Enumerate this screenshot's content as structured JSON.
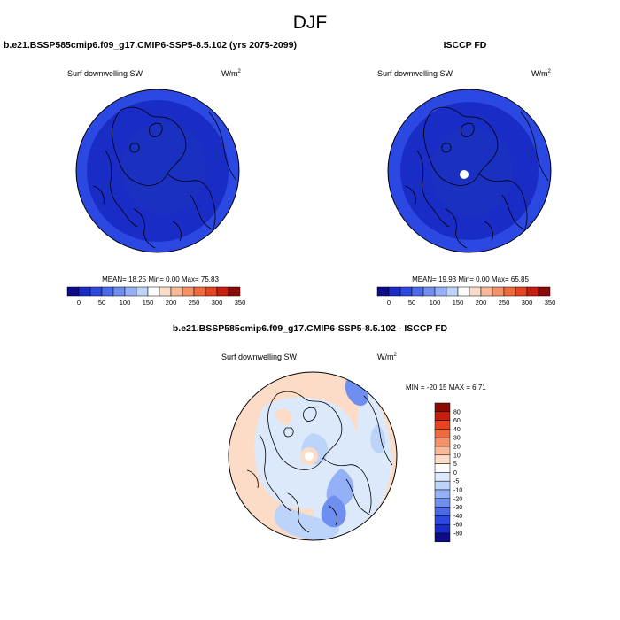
{
  "title": "DJF",
  "panels": {
    "left": {
      "title": "b.e21.BSSP585cmip6.f09_g17.CMIP6-SSP5-8.5.102 (yrs 2075-2099)",
      "variable": "Surf downwelling SW",
      "units_base": "W/m",
      "units_exp": "2",
      "stats": "MEAN=  18.25  Min=   0.00  Max=  75.83"
    },
    "right": {
      "title": "ISCCP FD",
      "variable": "Surf downwelling SW",
      "units_base": "W/m",
      "units_exp": "2",
      "stats": "MEAN=  19.93  Min=   0.00  Max=  65.85"
    },
    "diff": {
      "title": "b.e21.BSSP585cmip6.f09_g17.CMIP6-SSP5-8.5.102 - ISCCP FD",
      "variable": "Surf downwelling SW",
      "units_base": "W/m",
      "units_exp": "2",
      "stats": "MIN = -20.15 MAX =   6.71"
    }
  },
  "chart_data": [
    {
      "type": "heatmap",
      "projection": "north-polar-stereographic",
      "panel": "left",
      "colorbar": {
        "orientation": "horizontal",
        "ticks": [
          "0",
          "50",
          "100",
          "150",
          "200",
          "250",
          "300",
          "350"
        ],
        "colors": [
          "#0d0a8c",
          "#1a2cc6",
          "#2c48e2",
          "#4b6ae8",
          "#6f8ff0",
          "#94b0f6",
          "#bcd4fa",
          "#fcfcfc",
          "#fcdcc6",
          "#fbb896",
          "#f69066",
          "#ef6a3c",
          "#e6431e",
          "#c81e10",
          "#8c0a06"
        ]
      },
      "field_summary": {
        "mean": 18.25,
        "min": 0.0,
        "max": 75.83
      }
    },
    {
      "type": "heatmap",
      "projection": "north-polar-stereographic",
      "panel": "right",
      "colorbar": {
        "orientation": "horizontal",
        "ticks": [
          "0",
          "50",
          "100",
          "150",
          "200",
          "250",
          "300",
          "350"
        ],
        "colors": [
          "#0d0a8c",
          "#1a2cc6",
          "#2c48e2",
          "#4b6ae8",
          "#6f8ff0",
          "#94b0f6",
          "#bcd4fa",
          "#fcfcfc",
          "#fcdcc6",
          "#fbb896",
          "#f69066",
          "#ef6a3c",
          "#e6431e",
          "#c81e10",
          "#8c0a06"
        ]
      },
      "field_summary": {
        "mean": 19.93,
        "min": 0.0,
        "max": 65.85
      }
    },
    {
      "type": "heatmap",
      "projection": "north-polar-stereographic",
      "panel": "diff",
      "colorbar": {
        "orientation": "vertical",
        "ticks": [
          "80",
          "60",
          "40",
          "30",
          "20",
          "10",
          "5",
          "0",
          "-5",
          "-10",
          "-20",
          "-30",
          "-40",
          "-60",
          "-80"
        ],
        "colors": [
          "#8c0a06",
          "#c81e10",
          "#e6431e",
          "#ef6a3c",
          "#f69066",
          "#fbb896",
          "#fcdcc6",
          "#fcfcfc",
          "#dbe9fb",
          "#bcd4fa",
          "#94b0f6",
          "#6f8ff0",
          "#4b6ae8",
          "#2c48e2",
          "#1a2cc6",
          "#0d0a8c"
        ]
      },
      "field_summary": {
        "min": -20.15,
        "max": 6.71
      }
    }
  ]
}
